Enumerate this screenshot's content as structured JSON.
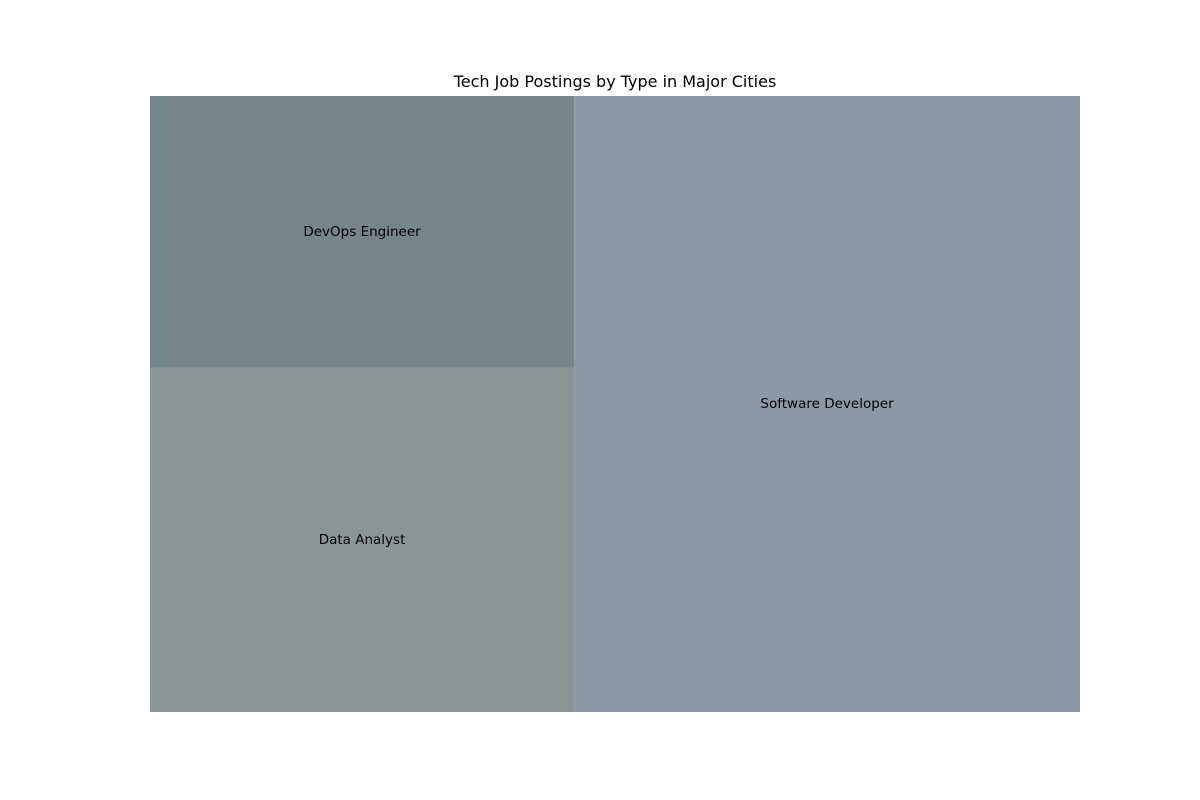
{
  "chart_data": {
    "type": "treemap",
    "title": "Tech Job Postings by Type in Major Cities",
    "items": [
      {
        "label": "Software Developer",
        "value": 54.4,
        "color": "#8b98a6"
      },
      {
        "label": "Data Analyst",
        "value": 25.5,
        "color": "#8a9696"
      },
      {
        "label": "DevOps Engineer",
        "value": 20.1,
        "color": "#74858c"
      }
    ]
  }
}
